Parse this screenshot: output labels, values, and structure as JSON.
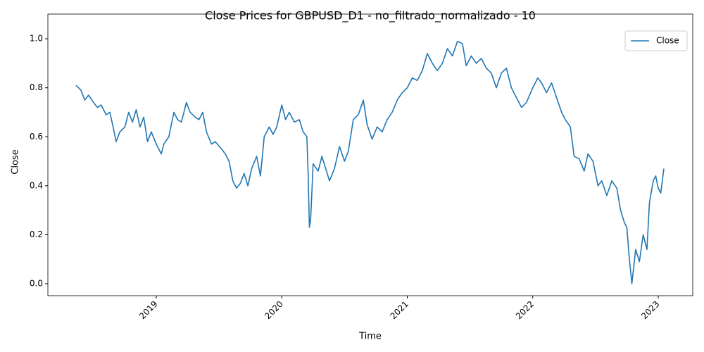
{
  "chart_data": {
    "type": "line",
    "title": "Close Prices for GBPUSD_D1 - no_filtrado_normalizado - 10",
    "x_label": "Time",
    "y_label": "Close",
    "x": [
      2018.36,
      2018.4,
      2018.43,
      2018.46,
      2018.5,
      2018.53,
      2018.56,
      2018.6,
      2018.63,
      2018.66,
      2018.68,
      2018.71,
      2018.75,
      2018.78,
      2018.81,
      2018.84,
      2018.87,
      2018.9,
      2018.93,
      2018.96,
      2019.0,
      2019.04,
      2019.06,
      2019.1,
      2019.14,
      2019.17,
      2019.2,
      2019.24,
      2019.27,
      2019.31,
      2019.34,
      2019.37,
      2019.4,
      2019.44,
      2019.47,
      2019.52,
      2019.55,
      2019.58,
      2019.61,
      2019.64,
      2019.67,
      2019.7,
      2019.73,
      2019.76,
      2019.8,
      2019.83,
      2019.86,
      2019.9,
      2019.93,
      2019.96,
      2020.0,
      2020.03,
      2020.06,
      2020.1,
      2020.14,
      2020.17,
      2020.2,
      2020.21,
      2020.22,
      2020.23,
      2020.25,
      2020.29,
      2020.32,
      2020.35,
      2020.38,
      2020.42,
      2020.46,
      2020.5,
      2020.53,
      2020.57,
      2020.61,
      2020.65,
      2020.68,
      2020.72,
      2020.76,
      2020.8,
      2020.84,
      2020.88,
      2020.92,
      2020.96,
      2021.0,
      2021.04,
      2021.08,
      2021.12,
      2021.16,
      2021.2,
      2021.24,
      2021.28,
      2021.32,
      2021.36,
      2021.4,
      2021.44,
      2021.47,
      2021.51,
      2021.55,
      2021.59,
      2021.63,
      2021.67,
      2021.71,
      2021.75,
      2021.79,
      2021.83,
      2021.87,
      2021.91,
      2021.95,
      2022.0,
      2022.04,
      2022.07,
      2022.11,
      2022.15,
      2022.19,
      2022.23,
      2022.26,
      2022.3,
      2022.33,
      2022.37,
      2022.41,
      2022.44,
      2022.48,
      2022.52,
      2022.55,
      2022.59,
      2022.63,
      2022.67,
      2022.7,
      2022.73,
      2022.75,
      2022.77,
      2022.79,
      2022.82,
      2022.85,
      2022.88,
      2022.91,
      2022.93,
      2022.96,
      2022.98,
      2023.0,
      2023.02,
      2023.045
    ],
    "series": [
      {
        "name": "Close",
        "color": "#1f77b4",
        "values": [
          0.81,
          0.79,
          0.75,
          0.77,
          0.74,
          0.72,
          0.73,
          0.69,
          0.7,
          0.63,
          0.58,
          0.62,
          0.64,
          0.7,
          0.66,
          0.71,
          0.64,
          0.68,
          0.58,
          0.62,
          0.57,
          0.53,
          0.57,
          0.6,
          0.7,
          0.67,
          0.66,
          0.74,
          0.7,
          0.68,
          0.67,
          0.7,
          0.62,
          0.57,
          0.58,
          0.55,
          0.53,
          0.5,
          0.42,
          0.39,
          0.41,
          0.45,
          0.4,
          0.47,
          0.52,
          0.44,
          0.6,
          0.64,
          0.61,
          0.64,
          0.73,
          0.67,
          0.7,
          0.66,
          0.67,
          0.62,
          0.6,
          0.45,
          0.23,
          0.26,
          0.49,
          0.46,
          0.52,
          0.47,
          0.42,
          0.47,
          0.56,
          0.5,
          0.54,
          0.67,
          0.69,
          0.75,
          0.65,
          0.59,
          0.64,
          0.62,
          0.67,
          0.7,
          0.75,
          0.78,
          0.8,
          0.84,
          0.83,
          0.87,
          0.94,
          0.9,
          0.87,
          0.9,
          0.96,
          0.93,
          0.99,
          0.98,
          0.89,
          0.93,
          0.9,
          0.92,
          0.88,
          0.86,
          0.8,
          0.86,
          0.88,
          0.8,
          0.76,
          0.72,
          0.74,
          0.8,
          0.84,
          0.82,
          0.78,
          0.82,
          0.76,
          0.7,
          0.67,
          0.64,
          0.52,
          0.51,
          0.46,
          0.53,
          0.5,
          0.4,
          0.42,
          0.36,
          0.42,
          0.39,
          0.3,
          0.25,
          0.23,
          0.1,
          0.0,
          0.14,
          0.09,
          0.2,
          0.14,
          0.33,
          0.42,
          0.44,
          0.39,
          0.37,
          0.47
        ]
      }
    ],
    "xlim": [
      2018.136,
      2023.275
    ],
    "xticks": [
      2019,
      2020,
      2021,
      2022,
      2023
    ],
    "ylim": [
      -0.049,
      1.101
    ],
    "yticks": [
      {
        "value": 0,
        "label": "0.0"
      },
      0.2,
      0.4,
      0.6,
      0.8,
      {
        "value": 1,
        "label": "1.0"
      }
    ],
    "legend": "upper right"
  }
}
